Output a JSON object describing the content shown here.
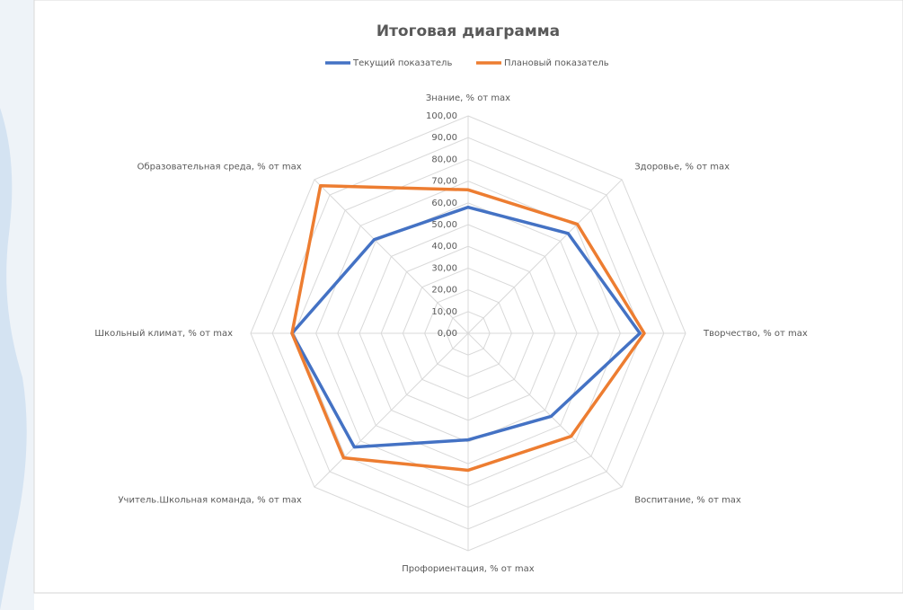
{
  "chart_data": {
    "type": "radar",
    "title": "Итоговая диаграмма",
    "categories": [
      "Знание, % от max",
      "Здоровье, % от max",
      "Творчество, % от max",
      "Воспитание, % от max",
      "Профориентация, % от max",
      "Учитель.Школьная команда, % от max",
      "Школьный климат, % от max",
      "Образовательная среда, % от max"
    ],
    "series": [
      {
        "name": "Текущий показатель",
        "color": "#4472c4",
        "values": [
          58,
          65,
          79,
          54,
          49,
          74,
          81,
          61
        ]
      },
      {
        "name": "Плановый показатель",
        "color": "#ed7d31",
        "values": [
          66,
          71,
          81,
          67,
          63,
          81,
          81,
          96
        ]
      }
    ],
    "ylim": [
      0,
      100
    ],
    "yticks": [
      {
        "value": 0,
        "label": "0,00"
      },
      {
        "value": 10,
        "label": "10,00"
      },
      {
        "value": 20,
        "label": "20,00"
      },
      {
        "value": 30,
        "label": "30,00"
      },
      {
        "value": 40,
        "label": "40,00"
      },
      {
        "value": 50,
        "label": "50,00"
      },
      {
        "value": 60,
        "label": "60,00"
      },
      {
        "value": 70,
        "label": "70,00"
      },
      {
        "value": 80,
        "label": "80,00"
      },
      {
        "value": 90,
        "label": "90,00"
      },
      {
        "value": 100,
        "label": "100,00"
      }
    ],
    "grid": true,
    "legend": "top"
  }
}
